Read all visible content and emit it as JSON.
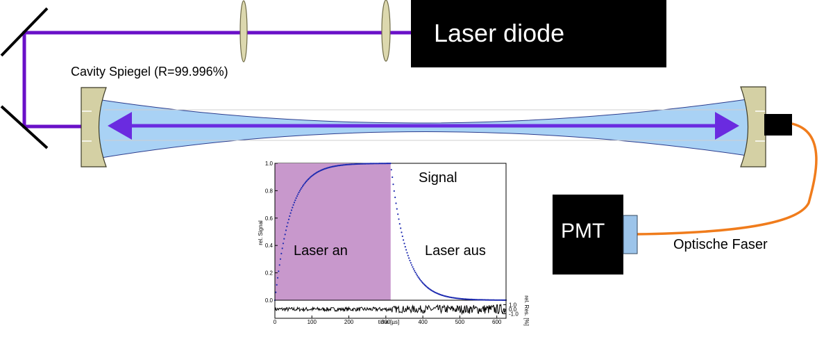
{
  "labels": {
    "laser_diode": "Laser diode",
    "mirror": "Cavity Spiegel (R=99.996%)",
    "pmt": "PMT",
    "fiber": "Optische Faser"
  },
  "colors": {
    "beam": "#6a10c8",
    "arrow": "#6a2be0",
    "cavity_fill": "#a9d2f5",
    "mirror_mount": "#d4d0a4",
    "lens": "#dcd8ae",
    "fiber": "#f07c1c",
    "pmt_window": "#9cc4ea",
    "laser_phase": "#c898cc",
    "signal": "#1e2bb0"
  },
  "chart_data": {
    "type": "line",
    "title": "",
    "xlabel": "time [µs]",
    "ylabel": "rel. Signal",
    "y2label": "rel. Res. [%]",
    "xlim": [
      0,
      625
    ],
    "ylim": [
      0,
      1
    ],
    "xticks": [
      0,
      100,
      200,
      300,
      400,
      500,
      600
    ],
    "yticks": [
      0.0,
      0.2,
      0.4,
      0.6,
      0.8,
      1.0
    ],
    "ytick_labels": [
      "0.0",
      "0.2",
      "0.4",
      "0.6",
      "0.8",
      "1.0"
    ],
    "res_ticks": [
      1.0,
      0.0,
      -1.0
    ],
    "res_tick_labels": [
      "1.0",
      "0.0",
      "-1.0"
    ],
    "res_ylim": [
      -2,
      2
    ],
    "switch_off_time": 313,
    "time_constant_us": 42,
    "annotations": {
      "signal": "Signal",
      "laser_on": "Laser an",
      "laser_off": "Laser aus"
    },
    "series": [
      {
        "role": "signal",
        "x": [
          0,
          10,
          20,
          30,
          40,
          50,
          60,
          70,
          80,
          100,
          120,
          140,
          160,
          180,
          200,
          240,
          280,
          313,
          320,
          330,
          340,
          350,
          360,
          370,
          380,
          400,
          420,
          440,
          460,
          480,
          500,
          540,
          580,
          625
        ],
        "values": [
          0.0,
          0.21,
          0.38,
          0.51,
          0.61,
          0.7,
          0.76,
          0.81,
          0.85,
          0.91,
          0.94,
          0.96,
          0.975,
          0.985,
          0.99,
          0.997,
          0.999,
          1.0,
          0.85,
          0.67,
          0.52,
          0.41,
          0.32,
          0.25,
          0.2,
          0.12,
          0.075,
          0.047,
          0.029,
          0.018,
          0.011,
          0.004,
          0.002,
          0.0
        ]
      }
    ]
  }
}
